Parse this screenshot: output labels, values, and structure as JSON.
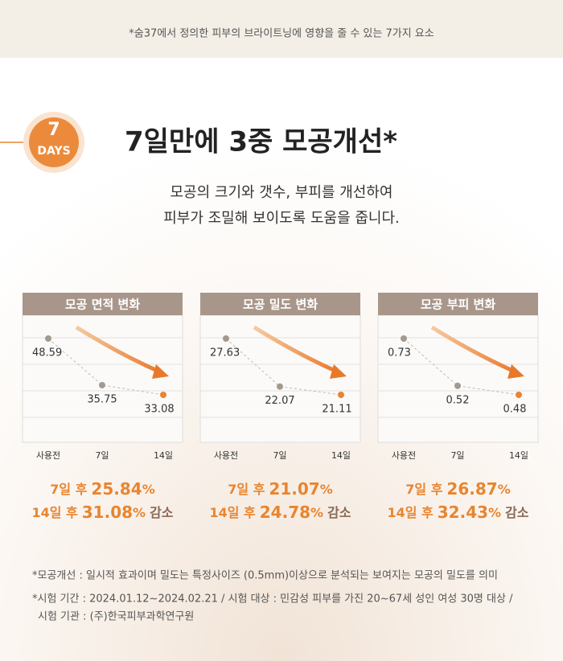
{
  "header_note": "*숨37에서 정의한 피부의 브라이트닝에 영향을 줄 수 있는 7가지 요소",
  "badge": {
    "number": "7",
    "unit": "DAYS"
  },
  "title": "7일만에 3중 모공개선*",
  "subtitle": [
    "모공의 크기와 갯수, 부피를 개선하여",
    "피부가 조밀해 보이도록 도움을 줍니다."
  ],
  "chart_data": [
    {
      "type": "line",
      "title": "모공 면적 변화",
      "categories": [
        "사용전",
        "7일",
        "14일"
      ],
      "values": [
        48.59,
        35.75,
        33.08
      ]
    },
    {
      "type": "line",
      "title": "모공 밀도 변화",
      "categories": [
        "사용전",
        "7일",
        "14일"
      ],
      "values": [
        27.63,
        22.07,
        21.11
      ]
    },
    {
      "type": "line",
      "title": "모공 부피 변화",
      "categories": [
        "사용전",
        "7일",
        "14일"
      ],
      "values": [
        0.73,
        0.52,
        0.48
      ]
    }
  ],
  "results": [
    [
      {
        "label": "7일 후",
        "value": "25.84",
        "unit": "%",
        "suffix": ""
      },
      {
        "label": "14일 후",
        "value": "31.08",
        "unit": "%",
        "suffix": "감소"
      }
    ],
    [
      {
        "label": "7일 후",
        "value": "21.07",
        "unit": "%",
        "suffix": ""
      },
      {
        "label": "14일 후",
        "value": "24.78",
        "unit": "%",
        "suffix": "감소"
      }
    ],
    [
      {
        "label": "7일 후",
        "value": "26.87",
        "unit": "%",
        "suffix": ""
      },
      {
        "label": "14일 후",
        "value": "32.43",
        "unit": "%",
        "suffix": "감소"
      }
    ]
  ],
  "footnotes": [
    "*모공개선 : 일시적 효과이며 밀도는 특정사이즈 (0.5mm)이상으로 분석되는 보여지는 모공의 밀도를 의미",
    "*시험 기간 : 2024.01.12~2024.02.21 / 시험 대상 : 민감성 피부를 가진 20~67세 성인 여성 30명 대상 /",
    "시험 기관 : (주)한국피부과학연구원"
  ]
}
